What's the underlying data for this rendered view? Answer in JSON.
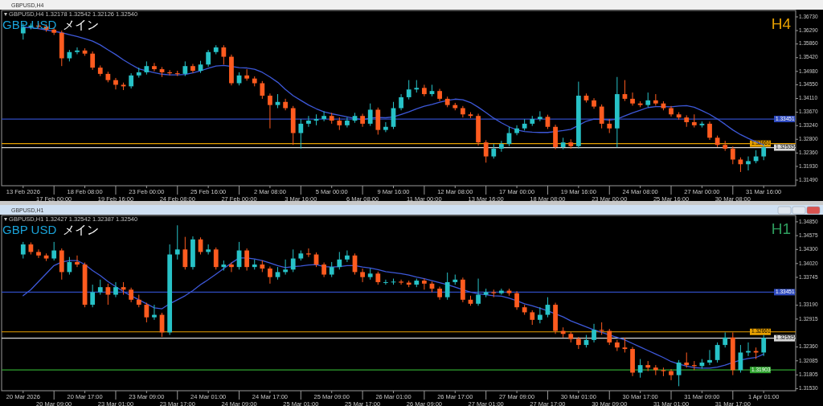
{
  "chart_data": [
    {
      "type": "candlestick",
      "title": "GBP USD",
      "subtitle": "メイン",
      "annotations": [
        "GBPUSD,H4",
        "▾ GBPUSD,H4  1.32178 1.32542 1.32126 1.32540",
        "H4"
      ],
      "colors": [
        "#27c2c7",
        "#27c2c7",
        "#ff5b1f",
        "#ff5b1f",
        "#ff5b1f",
        "#ff5b1f",
        "#27c2c7",
        "#27c2c7",
        "#ff5b1f",
        "#ff5b1f",
        "#ff5b1f",
        "#ff5b1f",
        "#ff5b1f",
        "#ff5b1f",
        "#27c2c7",
        "#27c2c7",
        "#27c2c7",
        "#ff5b1f",
        "#ff5b1f",
        "#ff5b1f",
        "#ff5b1f",
        "#27c2c7",
        "#ff5b1f",
        "#27c2c7",
        "#27c2c7",
        "#27c2c7",
        "#ff5b1f",
        "#ff5b1f",
        "#27c2c7",
        "#ff5b1f",
        "#ff5b1f",
        "#ff5b1f",
        "#ff5b1f",
        "#27c2c7",
        "#ff5b1f",
        "#ff5b1f",
        "#27c2c7",
        "#27c2c7",
        "#27c2c7",
        "#27c2c7",
        "#ff5b1f",
        "#ff5b1f",
        "#27c2c7",
        "#27c2c7",
        "#ff5b1f",
        "#27c2c7",
        "#ff5b1f",
        "#27c2c7",
        "#27c2c7",
        "#27c2c7",
        "#27c2c7",
        "#27c2c7",
        "#ff5b1f",
        "#27c2c7",
        "#ff5b1f",
        "#ff5b1f",
        "#ff5b1f",
        "#ff5b1f",
        "#ff5b1f",
        "#ff5b1f",
        "#ff5b1f",
        "#27c2c7",
        "#27c2c7",
        "#27c2c7",
        "#27c2c7",
        "#27c2c7",
        "#27c2c7",
        "#27c2c7",
        "#ff5b1f",
        "#ff5b1f",
        "#27c2c7",
        "#ff5b1f",
        "#27c2c7",
        "#ff5b1f",
        "#ff5b1f",
        "#ff5b1f",
        "#ff5b1f",
        "#27c2c7",
        "#ff5b1f",
        "#ff5b1f",
        "#ff5b1f",
        "#27c2c7",
        "#ff5b1f",
        "#ff5b1f",
        "#ff5b1f",
        "#ff5b1f",
        "#ff5b1f",
        "#ff5b1f",
        "#27c2c7",
        "#ff5b1f",
        "#ff5b1f",
        "#ff5b1f",
        "#ff5b1f",
        "#ff5b1f",
        "#27c2c7",
        "#27c2c7",
        "#27c2c7"
      ],
      "categories": [
        "13 Feb 2026",
        null,
        null,
        null,
        "17 Feb 00:00",
        null,
        null,
        null,
        "18 Feb 08:00",
        null,
        null,
        null,
        "19 Feb 16:00",
        null,
        null,
        null,
        "23 Feb 00:00",
        null,
        null,
        null,
        "24 Feb 08:00",
        null,
        null,
        null,
        "25 Feb 16:00",
        null,
        null,
        null,
        "27 Feb 00:00",
        null,
        null,
        null,
        "2 Mar 08:00",
        null,
        null,
        null,
        "3 Mar 16:00",
        null,
        null,
        null,
        "5 Mar 00:00",
        null,
        null,
        null,
        "6 Mar 08:00",
        null,
        null,
        null,
        "9 Mar 16:00",
        null,
        null,
        null,
        "11 Mar 00:00",
        null,
        null,
        null,
        "12 Mar 08:00",
        null,
        null,
        null,
        "13 Mar 16:00",
        null,
        null,
        null,
        "17 Mar 00:00",
        null,
        null,
        null,
        "18 Mar 08:00",
        null,
        null,
        null,
        "19 Mar 16:00",
        null,
        null,
        null,
        "23 Mar 00:00",
        null,
        null,
        null,
        "24 Mar 08:00",
        null,
        null,
        null,
        "25 Mar 16:00",
        null,
        null,
        null,
        "27 Mar 00:00",
        null,
        null,
        null,
        "30 Mar 08:00",
        null,
        null,
        null,
        "31 Mar 16:00"
      ],
      "ohlc": [
        [
          1.362,
          1.3652,
          1.36,
          1.364
        ],
        [
          1.364,
          1.3652,
          1.3633,
          1.3645
        ],
        [
          1.3645,
          1.3652,
          1.3635,
          1.3642
        ],
        [
          1.3642,
          1.3649,
          1.3625,
          1.3632
        ],
        [
          1.3632,
          1.3639,
          1.3615,
          1.3622
        ],
        [
          1.3622,
          1.3629,
          1.3515,
          1.354
        ],
        [
          1.354,
          1.3567,
          1.353,
          1.356
        ],
        [
          1.356,
          1.3575,
          1.3553,
          1.3565
        ],
        [
          1.3565,
          1.3572,
          1.3548,
          1.3555
        ],
        [
          1.3555,
          1.3562,
          1.3503,
          1.351
        ],
        [
          1.351,
          1.3517,
          1.3483,
          1.349
        ],
        [
          1.349,
          1.3497,
          1.3463,
          1.347
        ],
        [
          1.347,
          1.3477,
          1.344,
          1.3455
        ],
        [
          1.3455,
          1.3462,
          1.3438,
          1.345
        ],
        [
          1.345,
          1.3492,
          1.3443,
          1.3485
        ],
        [
          1.3485,
          1.351,
          1.3478,
          1.3495
        ],
        [
          1.3495,
          1.353,
          1.3488,
          1.3515
        ],
        [
          1.3515,
          1.3525,
          1.3498,
          1.3505
        ],
        [
          1.3505,
          1.3512,
          1.348,
          1.3495
        ],
        [
          1.3495,
          1.3502,
          1.3485,
          1.3492
        ],
        [
          1.3492,
          1.35,
          1.3483,
          1.349
        ],
        [
          1.349,
          1.353,
          1.3483,
          1.3515
        ],
        [
          1.3515,
          1.3522,
          1.3493,
          1.35
        ],
        [
          1.35,
          1.3532,
          1.3493,
          1.352
        ],
        [
          1.352,
          1.3567,
          1.3513,
          1.356
        ],
        [
          1.356,
          1.3582,
          1.3553,
          1.3575
        ],
        [
          1.3575,
          1.3582,
          1.352,
          1.3545
        ],
        [
          1.3545,
          1.3552,
          1.3453,
          1.346
        ],
        [
          1.346,
          1.3495,
          1.3453,
          1.3485
        ],
        [
          1.3485,
          1.3505,
          1.3468,
          1.3475
        ],
        [
          1.3475,
          1.3482,
          1.345,
          1.346
        ],
        [
          1.346,
          1.3467,
          1.341,
          1.342
        ],
        [
          1.342,
          1.3427,
          1.3315,
          1.339
        ],
        [
          1.339,
          1.3425,
          1.338,
          1.34
        ],
        [
          1.34,
          1.341,
          1.3373,
          1.338
        ],
        [
          1.338,
          1.3387,
          1.3262,
          1.33
        ],
        [
          1.33,
          1.3345,
          1.325,
          1.333
        ],
        [
          1.333,
          1.3355,
          1.332,
          1.334
        ],
        [
          1.334,
          1.336,
          1.3325,
          1.3345
        ],
        [
          1.3345,
          1.337,
          1.3338,
          1.3355
        ],
        [
          1.3355,
          1.3365,
          1.333,
          1.334
        ],
        [
          1.334,
          1.335,
          1.331,
          1.3325
        ],
        [
          1.3325,
          1.335,
          1.3318,
          1.334
        ],
        [
          1.334,
          1.3365,
          1.3333,
          1.3355
        ],
        [
          1.3355,
          1.3362,
          1.332,
          1.333
        ],
        [
          1.333,
          1.3395,
          1.3323,
          1.3375
        ],
        [
          1.3375,
          1.3382,
          1.3295,
          1.331
        ],
        [
          1.331,
          1.3335,
          1.3303,
          1.332
        ],
        [
          1.332,
          1.34,
          1.3313,
          1.338
        ],
        [
          1.338,
          1.3425,
          1.3373,
          1.3415
        ],
        [
          1.3415,
          1.347,
          1.3408,
          1.344
        ],
        [
          1.344,
          1.347,
          1.343,
          1.3445
        ],
        [
          1.3445,
          1.3455,
          1.3418,
          1.3425
        ],
        [
          1.3425,
          1.3455,
          1.3418,
          1.3435
        ],
        [
          1.3435,
          1.3442,
          1.3403,
          1.341
        ],
        [
          1.341,
          1.3417,
          1.3383,
          1.339
        ],
        [
          1.339,
          1.3397,
          1.3373,
          1.338
        ],
        [
          1.338,
          1.3387,
          1.335,
          1.336
        ],
        [
          1.336,
          1.3367,
          1.3348,
          1.3355
        ],
        [
          1.3355,
          1.3362,
          1.326,
          1.327
        ],
        [
          1.327,
          1.3277,
          1.3205,
          1.3225
        ],
        [
          1.3225,
          1.3265,
          1.3218,
          1.325
        ],
        [
          1.325,
          1.3275,
          1.324,
          1.3265
        ],
        [
          1.3265,
          1.332,
          1.3258,
          1.33
        ],
        [
          1.33,
          1.3325,
          1.3293,
          1.3315
        ],
        [
          1.3315,
          1.3345,
          1.3308,
          1.333
        ],
        [
          1.333,
          1.3355,
          1.3323,
          1.3345
        ],
        [
          1.3345,
          1.337,
          1.3338,
          1.3352
        ],
        [
          1.3352,
          1.3359,
          1.3313,
          1.332
        ],
        [
          1.332,
          1.3327,
          1.3248,
          1.3255
        ],
        [
          1.3255,
          1.3285,
          1.3248,
          1.327
        ],
        [
          1.327,
          1.328,
          1.325,
          1.3258
        ],
        [
          1.3258,
          1.3465,
          1.3251,
          1.342
        ],
        [
          1.342,
          1.3427,
          1.3398,
          1.3405
        ],
        [
          1.3405,
          1.3412,
          1.3378,
          1.3385
        ],
        [
          1.3385,
          1.3392,
          1.3315,
          1.333
        ],
        [
          1.333,
          1.3345,
          1.33,
          1.3315
        ],
        [
          1.3315,
          1.348,
          1.3254,
          1.3425
        ],
        [
          1.3425,
          1.347,
          1.3403,
          1.341
        ],
        [
          1.341,
          1.343,
          1.3388,
          1.3395
        ],
        [
          1.3395,
          1.3402,
          1.3383,
          1.339
        ],
        [
          1.339,
          1.343,
          1.3383,
          1.3405
        ],
        [
          1.3405,
          1.3425,
          1.3388,
          1.3395
        ],
        [
          1.3395,
          1.3402,
          1.3373,
          1.338
        ],
        [
          1.338,
          1.3387,
          1.3353,
          1.336
        ],
        [
          1.336,
          1.3367,
          1.3343,
          1.335
        ],
        [
          1.335,
          1.3357,
          1.332,
          1.3335
        ],
        [
          1.3335,
          1.336,
          1.3318,
          1.3325
        ],
        [
          1.3325,
          1.3337,
          1.3318,
          1.333
        ],
        [
          1.333,
          1.3337,
          1.3278,
          1.3285
        ],
        [
          1.3285,
          1.3292,
          1.3255,
          1.3262
        ],
        [
          1.3262,
          1.3275,
          1.3243,
          1.325
        ],
        [
          1.325,
          1.3257,
          1.32,
          1.3215
        ],
        [
          1.3215,
          1.3222,
          1.3175,
          1.32
        ],
        [
          1.32,
          1.3225,
          1.318,
          1.321
        ],
        [
          1.321,
          1.3245,
          1.3203,
          1.3225
        ],
        [
          1.3225,
          1.3262,
          1.3213,
          1.3254
        ]
      ],
      "series": [
        {
          "type": "line",
          "color": "#3d58d8",
          "values": [
            1.364,
            1.3638,
            1.3635,
            1.3631,
            1.3627,
            1.3622,
            1.3616,
            1.361,
            1.3603,
            1.3595,
            1.3583,
            1.3567,
            1.3552,
            1.3535,
            1.352,
            1.3506,
            1.35,
            1.3494,
            1.3489,
            1.3487,
            1.3487,
            1.3488,
            1.3493,
            1.35,
            1.3508,
            1.3515,
            1.3517,
            1.3514,
            1.351,
            1.3509,
            1.3505,
            1.3495,
            1.348,
            1.3463,
            1.344,
            1.342,
            1.3405,
            1.339,
            1.3378,
            1.3368,
            1.3362,
            1.3357,
            1.3352,
            1.3347,
            1.3343,
            1.3348,
            1.335,
            1.3349,
            1.3352,
            1.336,
            1.3368,
            1.3378,
            1.3386,
            1.3392,
            1.3399,
            1.3405,
            1.3409,
            1.3407,
            1.3398,
            1.3383,
            1.3366,
            1.3348,
            1.3333,
            1.332,
            1.331,
            1.3305,
            1.3303,
            1.3302,
            1.3302,
            1.3305,
            1.3308,
            1.3312,
            1.3325,
            1.3338,
            1.3345,
            1.3344,
            1.3342,
            1.3345,
            1.3355,
            1.3365,
            1.3373,
            1.3382,
            1.3385,
            1.3385,
            1.3384,
            1.3387,
            1.3388,
            1.3383,
            1.3372,
            1.336,
            1.3345,
            1.3328,
            1.331,
            1.3295,
            1.3283,
            1.3272,
            1.3262
          ]
        }
      ],
      "ylim": [
        1.3131,
        1.3691
      ],
      "yticks": [
        {
          "value": 1.3673,
          "label": "1.36730"
        },
        {
          "value": 1.3629,
          "label": "1.36290"
        },
        {
          "value": 1.3586,
          "label": "1.35860"
        },
        {
          "value": 1.3542,
          "label": "1.35420"
        },
        {
          "value": 1.3498,
          "label": "1.34980"
        },
        {
          "value": 1.3455,
          "label": "1.34550"
        },
        {
          "value": 1.3411,
          "label": "1.34110"
        },
        {
          "value": 1.3367,
          "label": "1.33670"
        },
        {
          "value": 1.3324,
          "label": "1.33240"
        },
        {
          "value": 1.328,
          "label": "1.32800"
        },
        {
          "value": 1.3236,
          "label": "1.32360"
        },
        {
          "value": 1.3193,
          "label": "1.31930"
        },
        {
          "value": 1.3149,
          "label": "1.31490"
        }
      ],
      "ref_lines": [
        {
          "axis": "y",
          "value": 1.33451,
          "label": "1.33451",
          "color": "#2f4bbf"
        },
        {
          "axis": "y",
          "value": 1.32661,
          "label": "1.32661",
          "color": "#e8a000"
        },
        {
          "axis": "y",
          "value": 1.32535,
          "label": "1.32535",
          "color": "#d8d8d8"
        }
      ]
    },
    {
      "type": "candlestick",
      "title": "GBP USD",
      "subtitle": "メイン",
      "annotations": [
        "GBPUSD,H1",
        "▾ GBPUSD,H1  1.32427 1.32542 1.32387 1.32540",
        "H1"
      ],
      "colors": [
        "#27c2c7",
        "#ff5b1f",
        "#ff5b1f",
        "#ff5b1f",
        "#27c2c7",
        "#ff5b1f",
        "#27c2c7",
        "#ff5b1f",
        "#ff5b1f",
        "#27c2c7",
        "#27c2c7",
        "#ff5b1f",
        "#27c2c7",
        "#ff5b1f",
        "#ff5b1f",
        "#ff5b1f",
        "#ff5b1f",
        "#27c2c7",
        "#ff5b1f",
        "#27c2c7",
        "#27c2c7",
        "#ff5b1f",
        "#27c2c7",
        "#ff5b1f",
        "#27c2c7",
        "#ff5b1f",
        "#27c2c7",
        "#ff5b1f",
        "#27c2c7",
        "#ff5b1f",
        "#27c2c7",
        "#ff5b1f",
        "#ff5b1f",
        "#27c2c7",
        "#27c2c7",
        "#27c2c7",
        "#27c2c7",
        "#ff5b1f",
        "#ff5b1f",
        "#ff5b1f",
        "#27c2c7",
        "#27c2c7",
        "#27c2c7",
        "#ff5b1f",
        "#ff5b1f",
        "#27c2c7",
        "#ff5b1f",
        "#27c2c7",
        "#27c2c7",
        "#ff5b1f",
        "#ff5b1f",
        "#27c2c7",
        "#ff5b1f",
        "#ff5b1f",
        "#ff5b1f",
        "#27c2c7",
        "#27c2c7",
        "#ff5b1f",
        "#ff5b1f",
        "#27c2c7",
        "#27c2c7",
        "#ff5b1f",
        "#27c2c7",
        "#ff5b1f",
        "#ff5b1f",
        "#ff5b1f",
        "#ff5b1f",
        "#27c2c7",
        "#27c2c7",
        "#ff5b1f",
        "#ff5b1f",
        "#ff5b1f",
        "#ff5b1f",
        "#27c2c7",
        "#27c2c7",
        "#ff5b1f",
        "#ff5b1f",
        "#ff5b1f",
        "#ff5b1f",
        "#ff5b1f",
        "#27c2c7",
        "#ff5b1f",
        "#ff5b1f",
        "#ff5b1f",
        "#ff5b1f",
        "#27c2c7",
        "#ff5b1f",
        "#ff5b1f",
        "#27c2c7",
        "#27c2c7",
        "#27c2c7",
        "#27c2c7",
        "#ff5b1f",
        "#27c2c7",
        "#27c2c7",
        "#ff5b1f",
        "#27c2c7"
      ],
      "categories": [
        "20 Mar 2026",
        null,
        null,
        null,
        "20 Mar 09:00",
        null,
        null,
        null,
        "20 Mar 17:00",
        null,
        null,
        null,
        "23 Mar 01:00",
        null,
        null,
        null,
        "23 Mar 09:00",
        null,
        null,
        null,
        "23 Mar 17:00",
        null,
        null,
        null,
        "24 Mar 01:00",
        null,
        null,
        null,
        "24 Mar 09:00",
        null,
        null,
        null,
        "24 Mar 17:00",
        null,
        null,
        null,
        "25 Mar 01:00",
        null,
        null,
        null,
        "25 Mar 09:00",
        null,
        null,
        null,
        "25 Mar 17:00",
        null,
        null,
        null,
        "26 Mar 01:00",
        null,
        null,
        null,
        "26 Mar 09:00",
        null,
        null,
        null,
        "26 Mar 17:00",
        null,
        null,
        null,
        "27 Mar 01:00",
        null,
        null,
        null,
        "27 Mar 09:00",
        null,
        null,
        null,
        "27 Mar 17:00",
        null,
        null,
        null,
        "30 Mar 01:00",
        null,
        null,
        null,
        "30 Mar 09:00",
        null,
        null,
        null,
        "30 Mar 17:00",
        null,
        null,
        null,
        "31 Mar 01:00",
        null,
        null,
        null,
        "31 Mar 09:00",
        null,
        null,
        null,
        "31 Mar 17:00",
        null,
        null,
        null,
        "1 Apr 01:00"
      ],
      "ohlc": [
        [
          1.342,
          1.3445,
          1.3412,
          1.344
        ],
        [
          1.344,
          1.3444,
          1.342,
          1.3425
        ],
        [
          1.3425,
          1.343,
          1.3413,
          1.3418
        ],
        [
          1.3418,
          1.3422,
          1.3407,
          1.3412
        ],
        [
          1.3412,
          1.3445,
          1.3408,
          1.3428
        ],
        [
          1.3428,
          1.3432,
          1.337,
          1.3385
        ],
        [
          1.3385,
          1.3415,
          1.338,
          1.3405
        ],
        [
          1.3405,
          1.3418,
          1.3395,
          1.34
        ],
        [
          1.34,
          1.3404,
          1.3315,
          1.332
        ],
        [
          1.332,
          1.336,
          1.3315,
          1.3345
        ],
        [
          1.3345,
          1.337,
          1.334,
          1.3355
        ],
        [
          1.3355,
          1.3362,
          1.332,
          1.334
        ],
        [
          1.334,
          1.3365,
          1.3335,
          1.3355
        ],
        [
          1.3355,
          1.3365,
          1.334,
          1.335
        ],
        [
          1.335,
          1.3354,
          1.3325,
          1.333
        ],
        [
          1.333,
          1.334,
          1.3315,
          1.332
        ],
        [
          1.332,
          1.3324,
          1.3285,
          1.3295
        ],
        [
          1.3295,
          1.332,
          1.329,
          1.33
        ],
        [
          1.33,
          1.3304,
          1.3256,
          1.3265
        ],
        [
          1.3265,
          1.344,
          1.326,
          1.342
        ],
        [
          1.342,
          1.3478,
          1.341,
          1.343
        ],
        [
          1.343,
          1.3455,
          1.339,
          1.3395
        ],
        [
          1.3395,
          1.3456,
          1.339,
          1.345
        ],
        [
          1.345,
          1.3454,
          1.342,
          1.3425
        ],
        [
          1.3425,
          1.344,
          1.342,
          1.343
        ],
        [
          1.343,
          1.3434,
          1.339,
          1.3395
        ],
        [
          1.3395,
          1.3408,
          1.3388,
          1.34
        ],
        [
          1.34,
          1.3404,
          1.3385,
          1.3395
        ],
        [
          1.3395,
          1.3445,
          1.339,
          1.3428
        ],
        [
          1.3428,
          1.3432,
          1.3388,
          1.3395
        ],
        [
          1.3395,
          1.341,
          1.339,
          1.34
        ],
        [
          1.34,
          1.3408,
          1.3385,
          1.3392
        ],
        [
          1.3392,
          1.3396,
          1.3362,
          1.3375
        ],
        [
          1.3375,
          1.3395,
          1.337,
          1.3385
        ],
        [
          1.3385,
          1.341,
          1.338,
          1.339
        ],
        [
          1.339,
          1.343,
          1.3385,
          1.3412
        ],
        [
          1.3412,
          1.3428,
          1.3408,
          1.3422
        ],
        [
          1.3422,
          1.3432,
          1.3415,
          1.342
        ],
        [
          1.342,
          1.3424,
          1.3395,
          1.34
        ],
        [
          1.34,
          1.3404,
          1.3375,
          1.338
        ],
        [
          1.338,
          1.3405,
          1.3375,
          1.3395
        ],
        [
          1.3395,
          1.3425,
          1.339,
          1.341
        ],
        [
          1.341,
          1.3428,
          1.3405,
          1.3418
        ],
        [
          1.3418,
          1.3422,
          1.338,
          1.3385
        ],
        [
          1.3385,
          1.3392,
          1.3365,
          1.3375
        ],
        [
          1.3375,
          1.3392,
          1.337,
          1.3382
        ],
        [
          1.3382,
          1.3386,
          1.336,
          1.3365
        ],
        [
          1.3365,
          1.337,
          1.336,
          1.3365
        ],
        [
          1.3365,
          1.3372,
          1.336,
          1.3366
        ],
        [
          1.3366,
          1.337,
          1.336,
          1.3364
        ],
        [
          1.3364,
          1.3368,
          1.3355,
          1.336
        ],
        [
          1.336,
          1.3372,
          1.3355,
          1.3368
        ],
        [
          1.3368,
          1.3372,
          1.335,
          1.3362
        ],
        [
          1.3362,
          1.3366,
          1.3345,
          1.3352
        ],
        [
          1.3352,
          1.3356,
          1.333,
          1.3335
        ],
        [
          1.3335,
          1.3384,
          1.333,
          1.3365
        ],
        [
          1.3365,
          1.338,
          1.336,
          1.337
        ],
        [
          1.337,
          1.3374,
          1.3325,
          1.333
        ],
        [
          1.333,
          1.3338,
          1.3318,
          1.3322
        ],
        [
          1.3322,
          1.3372,
          1.3318,
          1.334
        ],
        [
          1.334,
          1.3352,
          1.3335,
          1.3345
        ],
        [
          1.3345,
          1.335,
          1.3335,
          1.3343
        ],
        [
          1.3343,
          1.3352,
          1.334,
          1.3348
        ],
        [
          1.3348,
          1.3352,
          1.3338,
          1.3343
        ],
        [
          1.3343,
          1.3347,
          1.331,
          1.3315
        ],
        [
          1.3315,
          1.332,
          1.33,
          1.3305
        ],
        [
          1.3305,
          1.3309,
          1.328,
          1.329
        ],
        [
          1.329,
          1.3315,
          1.3283,
          1.33
        ],
        [
          1.33,
          1.3335,
          1.3295,
          1.332
        ],
        [
          1.332,
          1.3324,
          1.3262,
          1.3268
        ],
        [
          1.3268,
          1.3275,
          1.3255,
          1.3262
        ],
        [
          1.3262,
          1.3266,
          1.3245,
          1.3252
        ],
        [
          1.3252,
          1.3256,
          1.3232,
          1.324
        ],
        [
          1.324,
          1.326,
          1.3235,
          1.325
        ],
        [
          1.325,
          1.3282,
          1.3245,
          1.327
        ],
        [
          1.327,
          1.3285,
          1.326,
          1.3268
        ],
        [
          1.3268,
          1.3272,
          1.324,
          1.3245
        ],
        [
          1.3245,
          1.325,
          1.3228,
          1.3235
        ],
        [
          1.3235,
          1.3255,
          1.3225,
          1.3232
        ],
        [
          1.3232,
          1.3236,
          1.3178,
          1.3185
        ],
        [
          1.3185,
          1.3212,
          1.3175,
          1.32
        ],
        [
          1.32,
          1.3208,
          1.3188,
          1.3195
        ],
        [
          1.3195,
          1.32,
          1.318,
          1.319
        ],
        [
          1.319,
          1.3195,
          1.3178,
          1.3188
        ],
        [
          1.3188,
          1.3192,
          1.317,
          1.318
        ],
        [
          1.318,
          1.321,
          1.3158,
          1.3205
        ],
        [
          1.3205,
          1.3225,
          1.3195,
          1.32
        ],
        [
          1.32,
          1.3208,
          1.319,
          1.3198
        ],
        [
          1.3198,
          1.3212,
          1.3193,
          1.3205
        ],
        [
          1.3205,
          1.323,
          1.32,
          1.321
        ],
        [
          1.321,
          1.3245,
          1.3205,
          1.324
        ],
        [
          1.324,
          1.3265,
          1.3235,
          1.3255
        ],
        [
          1.3255,
          1.3265,
          1.318,
          1.319
        ],
        [
          1.319,
          1.324,
          1.3185,
          1.3225
        ],
        [
          1.3225,
          1.3245,
          1.3218,
          1.3228
        ],
        [
          1.3228,
          1.3235,
          1.3212,
          1.3225
        ],
        [
          1.3225,
          1.326,
          1.3218,
          1.3254
        ]
      ],
      "series": [
        {
          "type": "line",
          "color": "#3d58d8",
          "values": [
            1.3338,
            1.335,
            1.3366,
            1.3382,
            1.3398,
            1.3405,
            1.3408,
            1.3408,
            1.34,
            1.3388,
            1.3378,
            1.3366,
            1.3356,
            1.3346,
            1.3338,
            1.333,
            1.3322,
            1.3314,
            1.3312,
            1.3322,
            1.333,
            1.3338,
            1.3348,
            1.336,
            1.337,
            1.3381,
            1.3392,
            1.3403,
            1.3413,
            1.3413,
            1.3411,
            1.3408,
            1.3403,
            1.3398,
            1.3394,
            1.3396,
            1.3397,
            1.3399,
            1.34,
            1.3396,
            1.3395,
            1.3396,
            1.3398,
            1.3398,
            1.3395,
            1.3393,
            1.339,
            1.3386,
            1.3384,
            1.3382,
            1.3379,
            1.3375,
            1.3372,
            1.3368,
            1.3364,
            1.336,
            1.3355,
            1.335,
            1.3345,
            1.3342,
            1.334,
            1.3338,
            1.3337,
            1.3333,
            1.3328,
            1.3322,
            1.3318,
            1.3313,
            1.3308,
            1.3302,
            1.3296,
            1.3288,
            1.3282,
            1.3276,
            1.327,
            1.3265,
            1.326,
            1.3255,
            1.325,
            1.3243,
            1.3236,
            1.3229,
            1.3222,
            1.3215,
            1.3207,
            1.3202,
            1.3198,
            1.3195,
            1.3194,
            1.3194,
            1.3196,
            1.32,
            1.3205,
            1.321,
            1.3213,
            1.3215,
            1.3222
          ]
        }
      ],
      "ylim": [
        1.3149,
        1.3496
      ],
      "yticks": [
        {
          "value": 1.3485,
          "label": "1.34850"
        },
        {
          "value": 1.34575,
          "label": "1.34575"
        },
        {
          "value": 1.343,
          "label": "1.34300"
        },
        {
          "value": 1.3402,
          "label": "1.34020"
        },
        {
          "value": 1.33745,
          "label": "1.33745"
        },
        {
          "value": 1.3319,
          "label": "1.33190"
        },
        {
          "value": 1.32915,
          "label": "1.32915"
        },
        {
          "value": 1.3236,
          "label": "1.32360"
        },
        {
          "value": 1.32085,
          "label": "1.32085"
        },
        {
          "value": 1.31805,
          "label": "1.31805"
        },
        {
          "value": 1.3153,
          "label": "1.31530"
        }
      ],
      "ref_lines": [
        {
          "axis": "y",
          "value": 1.33451,
          "label": "1.33451",
          "color": "#2f4bbf"
        },
        {
          "axis": "y",
          "value": 1.32661,
          "label": "1.32661",
          "color": "#e8a000"
        },
        {
          "axis": "y",
          "value": 1.32535,
          "label": "1.32535",
          "color": "#d8d8d8"
        },
        {
          "axis": "y",
          "value": 1.31903,
          "label": "1.31903",
          "color": "#2fa32f"
        }
      ]
    }
  ]
}
